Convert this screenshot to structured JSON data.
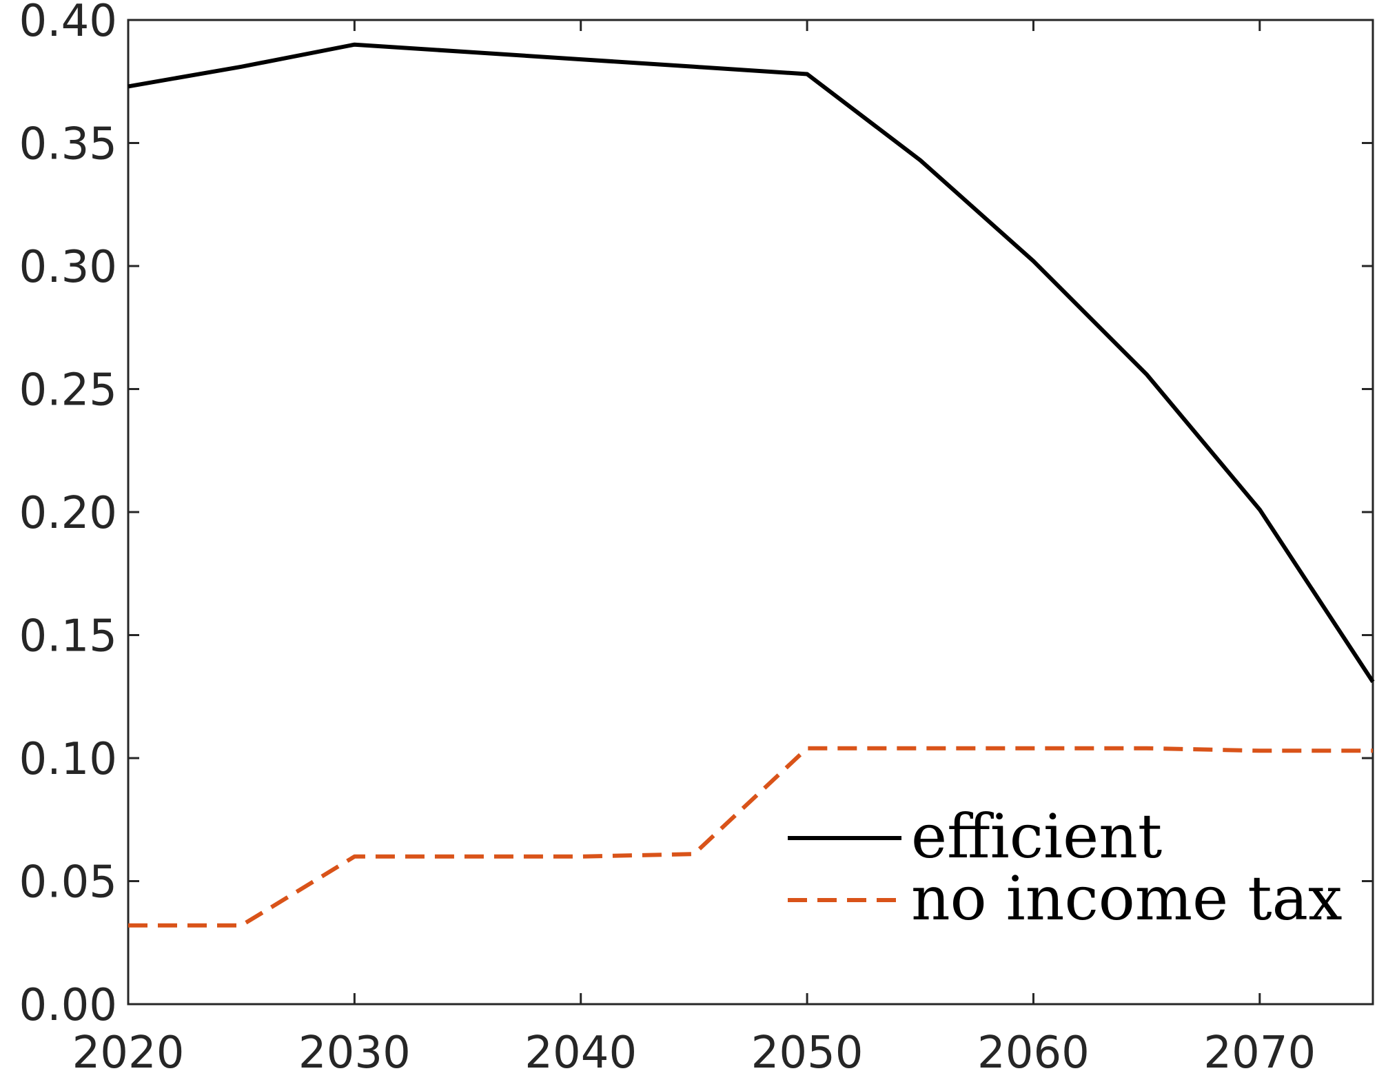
{
  "chart_data": {
    "type": "line",
    "title": "",
    "xlabel": "",
    "ylabel": "",
    "xlim": [
      2020,
      2075
    ],
    "ylim": [
      0,
      0.4
    ],
    "xticks": [
      {
        "value": 2020,
        "label": "2020"
      },
      {
        "value": 2030,
        "label": "2030"
      },
      {
        "value": 2040,
        "label": "2040"
      },
      {
        "value": 2050,
        "label": "2050"
      },
      {
        "value": 2060,
        "label": "2060"
      },
      {
        "value": 2070,
        "label": "2070"
      }
    ],
    "yticks": [
      {
        "value": 0.0,
        "label": "0.00"
      },
      {
        "value": 0.05,
        "label": "0.05"
      },
      {
        "value": 0.1,
        "label": "0.10"
      },
      {
        "value": 0.15,
        "label": "0.15"
      },
      {
        "value": 0.2,
        "label": "0.20"
      },
      {
        "value": 0.25,
        "label": "0.25"
      },
      {
        "value": 0.3,
        "label": "0.30"
      },
      {
        "value": 0.35,
        "label": "0.35"
      },
      {
        "value": 0.4,
        "label": "0.40"
      }
    ],
    "grid": false,
    "legend_position": "bottom-right",
    "series": [
      {
        "name": "efficient",
        "color": "#000000",
        "dash": "solid",
        "x": [
          2020,
          2025,
          2030,
          2035,
          2040,
          2045,
          2050,
          2055,
          2060,
          2065,
          2070,
          2075
        ],
        "y": [
          0.373,
          0.381,
          0.39,
          0.387,
          0.384,
          0.381,
          0.378,
          0.343,
          0.302,
          0.256,
          0.201,
          0.131
        ]
      },
      {
        "name": "no income tax",
        "color": "#D95319",
        "dash": "dashed",
        "x": [
          2020,
          2025,
          2030,
          2035,
          2040,
          2045,
          2050,
          2055,
          2060,
          2065,
          2070,
          2075
        ],
        "y": [
          0.032,
          0.032,
          0.06,
          0.06,
          0.06,
          0.061,
          0.104,
          0.104,
          0.104,
          0.104,
          0.103,
          0.103
        ]
      }
    ]
  }
}
